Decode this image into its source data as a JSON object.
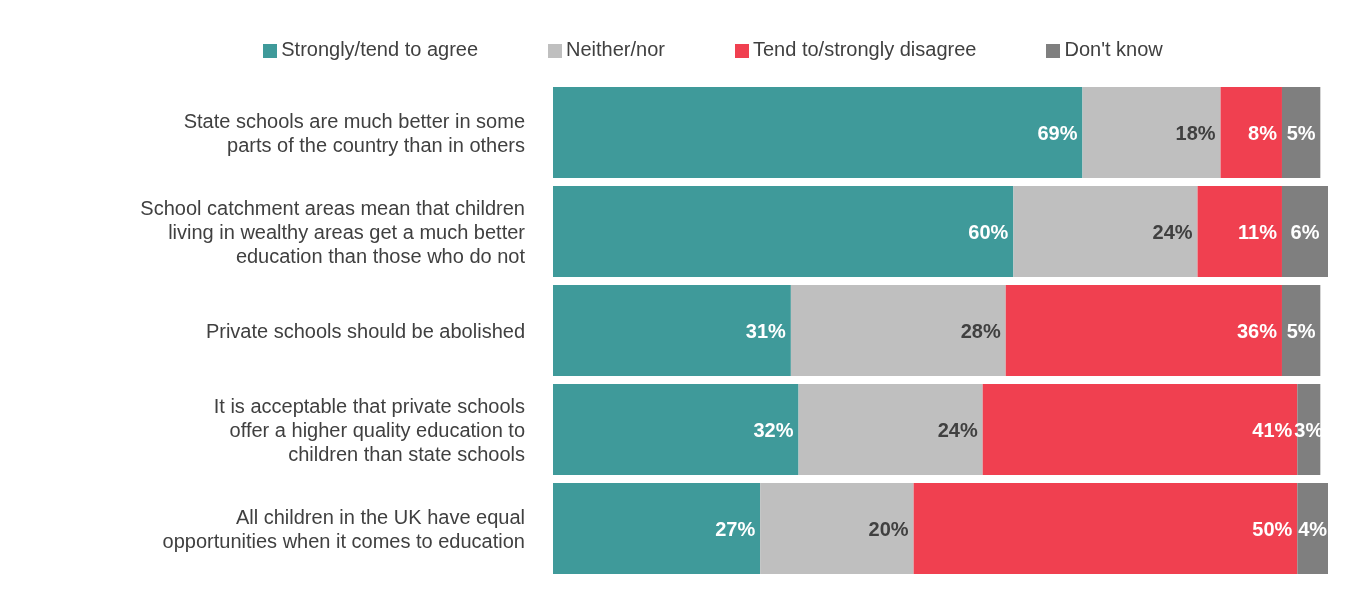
{
  "chart_data": {
    "type": "bar",
    "orientation": "horizontal",
    "stacked": true,
    "legend": "top",
    "grid": false,
    "categories": [
      "State schools are much better in some parts of the country than in others",
      "School catchment areas mean that children living in wealthy areas get a much better education than those who do not",
      "Private schools should be abolished",
      "It is acceptable that private schools offer a higher quality education to children than state schools",
      "All children in the UK have equal opportunities when it comes to education"
    ],
    "series": [
      {
        "name": "Strongly/tend to agree",
        "color": "#3f9a9a",
        "values": [
          69,
          60,
          31,
          32,
          27
        ],
        "value_labels": [
          "69%",
          "60%",
          "31%",
          "32%",
          "27%"
        ]
      },
      {
        "name": "Neither/nor",
        "color": "#bfbfbf",
        "values": [
          18,
          24,
          28,
          24,
          20
        ],
        "value_labels": [
          "18%",
          "24%",
          "28%",
          "24%",
          "20%"
        ]
      },
      {
        "name": "Tend to/strongly disagree",
        "color": "#f04050",
        "values": [
          8,
          11,
          36,
          41,
          50
        ],
        "value_labels": [
          "8%",
          "11%",
          "36%",
          "41%",
          "50%"
        ]
      },
      {
        "name": "Don't know",
        "color": "#7f7f7f",
        "values": [
          5,
          6,
          5,
          3,
          4
        ],
        "value_labels": [
          "5%",
          "6%",
          "5%",
          "3%",
          "4%"
        ]
      }
    ]
  }
}
